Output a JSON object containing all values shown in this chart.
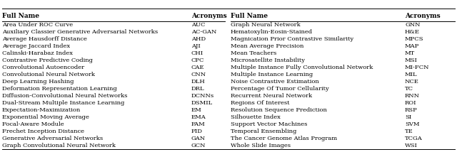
{
  "left_col": [
    [
      "Area Under ROC Curve",
      "AUC"
    ],
    [
      "Auxiliary Classier Generative Adversarial Networks",
      "AC-GAN"
    ],
    [
      "Average Hausdorff Distance",
      "AHD"
    ],
    [
      "Average Jaccard Index",
      "AJI"
    ],
    [
      "Calinski-Harabaz Index",
      "CHI"
    ],
    [
      "Contrastive Predictive Coding",
      "CPC"
    ],
    [
      "Convolutional Autoencoder",
      "CAE"
    ],
    [
      "Convolutional Neural Network",
      "CNN"
    ],
    [
      "Deep Learning Hashing",
      "DLH"
    ],
    [
      "Deformation Representation Learning",
      "DRL"
    ],
    [
      "Diffusion-Convolutional Neural Networks",
      "DCNNs"
    ],
    [
      "Dual-Stream Multiple Instance Learning",
      "DSMIL"
    ],
    [
      "Expectation-Maximization",
      "EM"
    ],
    [
      "Exponential Moving Average",
      "EMA"
    ],
    [
      "Focal-Aware Module",
      "FAM"
    ],
    [
      "Frechet Inception Distance",
      "FID"
    ],
    [
      "Generative Adversarial Networks",
      "GAN"
    ],
    [
      "Graph Convolutional Neural Network",
      "GCN"
    ]
  ],
  "right_col": [
    [
      "Graph Neural Network",
      "GNN"
    ],
    [
      "Hematoxylin-Eosin-Stained",
      "H&E"
    ],
    [
      "Magnication Prior Contrastive Similarity",
      "MPCS"
    ],
    [
      "Mean Average Precision",
      "MAP"
    ],
    [
      "Mean Teachers",
      "MT"
    ],
    [
      "Microsatellite Instability",
      "MSI"
    ],
    [
      "Multiple Instance Fully Convolutional Network",
      "MI-FCN"
    ],
    [
      "Multiple Instance Learning",
      "MIL"
    ],
    [
      "Noise Contrastive Estimation",
      "NCE"
    ],
    [
      "Percentage Of Tumor Cellularity",
      "TC"
    ],
    [
      "Recurrent Neural Network",
      "RNN"
    ],
    [
      "Regions Of Interest",
      "ROI"
    ],
    [
      "Resolution Sequence Prediction",
      "RSP"
    ],
    [
      "Silhouette Index",
      "SI"
    ],
    [
      "Support Vector Machines",
      "SVM"
    ],
    [
      "Temporal Ensembling",
      "TE"
    ],
    [
      "The Cancer Genome Atlas Program",
      "TCGA"
    ],
    [
      "Whole Slide Images",
      "WSI"
    ]
  ],
  "header": [
    "Full Name",
    "Acronyms"
  ],
  "bg_color": "#ffffff",
  "line_color": "#000000",
  "font_size": 6.0,
  "header_font_size": 6.5
}
